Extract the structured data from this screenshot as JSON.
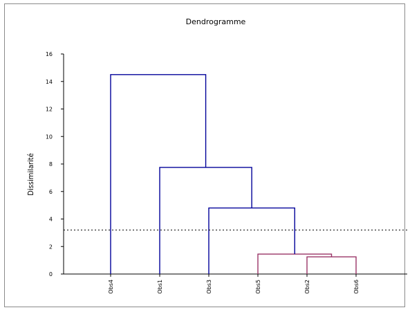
{
  "chart_data": {
    "type": "dendrogram",
    "title": "Dendrogramme",
    "ylabel": "Dissimilarité",
    "xlabel": "",
    "ylim": [
      0,
      16
    ],
    "yticks": [
      0,
      2,
      4,
      6,
      8,
      10,
      12,
      14,
      16
    ],
    "leaves": [
      "Obs4",
      "Obs1",
      "Obs3",
      "Obs5",
      "Obs2",
      "Obs6"
    ],
    "merges": [
      {
        "left": "Obs2",
        "right": "Obs6",
        "height": 1.25,
        "color": "#993366"
      },
      {
        "left": "Obs5",
        "right": "Obs2+Obs6",
        "height": 1.45,
        "color": "#993366"
      },
      {
        "left": "Obs3",
        "right": "Obs5+Obs2+Obs6",
        "height": 4.8,
        "color": "#000099"
      },
      {
        "left": "Obs1",
        "right": "Obs3+Obs5+Obs2+Obs6",
        "height": 7.75,
        "color": "#000099"
      },
      {
        "left": "Obs4",
        "right": "Obs1+Obs3+Obs5+Obs2+Obs6",
        "height": 14.5,
        "color": "#000099"
      }
    ],
    "cut_line": 3.2,
    "grid": false,
    "colors": {
      "upper_clusters": "#000099",
      "lower_clusters": "#993366",
      "cut_line": "#000000",
      "axis": "#000000"
    }
  }
}
